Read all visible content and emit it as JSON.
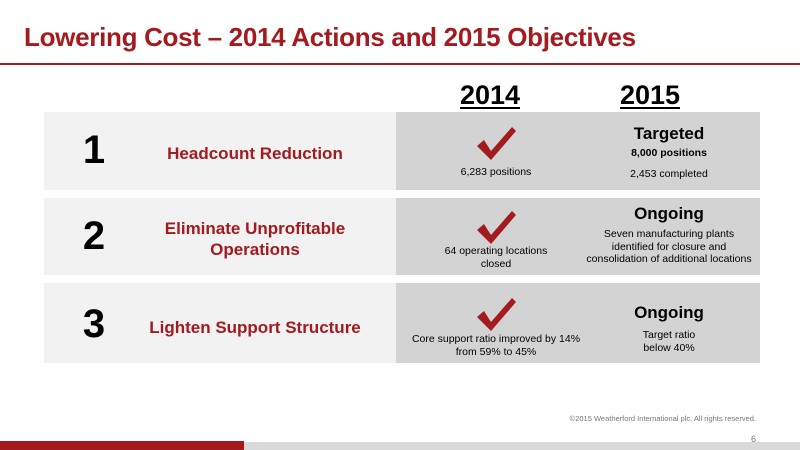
{
  "slide": {
    "title": "Lowering Cost – 2014 Actions and 2015 Objectives",
    "col_2014": "2014",
    "col_2015": "2015"
  },
  "rows": [
    {
      "number": "1",
      "action": "Headcount Reduction",
      "y2014_icon": "checkmark-icon",
      "y2014_note": "6,283 positions",
      "y2015_status": "Targeted",
      "y2015_line1": "8,000 positions",
      "y2015_line2": "2,453 completed"
    },
    {
      "number": "2",
      "action_line1": "Eliminate Unprofitable",
      "action_line2": "Operations",
      "y2014_icon": "checkmark-icon",
      "y2014_note_line1": "64 operating locations",
      "y2014_note_line2": "closed",
      "y2015_status": "Ongoing",
      "y2015_line1": "Seven manufacturing plants",
      "y2015_line2": "identified for closure and",
      "y2015_line3": "consolidation of additional locations"
    },
    {
      "number": "3",
      "action": "Lighten Support Structure",
      "y2014_icon": "checkmark-icon",
      "y2014_note_line1": "Core support ratio improved by 14%",
      "y2014_note_line2": "from 59% to 45%",
      "y2015_status": "Ongoing",
      "y2015_line1": "Target ratio",
      "y2015_line2": "below 40%"
    }
  ],
  "footer": {
    "copyright": "©2015 Weatherford International plc.  All rights reserved.",
    "page_number": "6"
  },
  "colors": {
    "accent": "#a31a1f",
    "row_left_bg": "#f2f2f2",
    "row_right_bg": "#d3d3d3"
  }
}
